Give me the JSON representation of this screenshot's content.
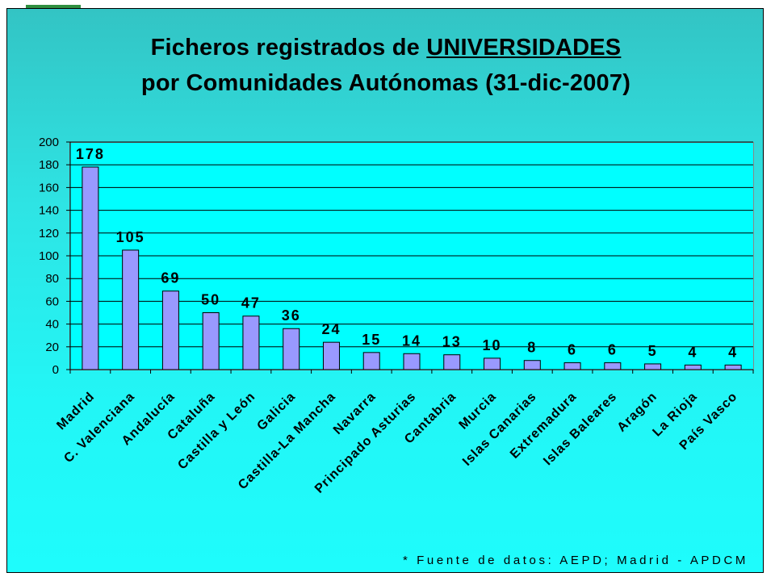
{
  "title": {
    "line1_prefix": "Ficheros registrados de ",
    "line1_emph": "UNIVERSIDADES",
    "line2": "por Comunidades Autónomas (31-dic-2007)"
  },
  "source_note": "* Fuente de datos: AEPD; Madrid - APDCM",
  "chart_data": {
    "type": "bar",
    "title": "Ficheros registrados de UNIVERSIDADES por Comunidades Autónomas (31-dic-2007)",
    "xlabel": "",
    "ylabel": "",
    "ylim": [
      0,
      200
    ],
    "yticks": [
      0,
      20,
      40,
      60,
      80,
      100,
      120,
      140,
      160,
      180,
      200
    ],
    "grid": true,
    "legend": "none",
    "categories": [
      "Madrid",
      "C. Valenciana",
      "Andalucía",
      "Cataluña",
      "Castilla y León",
      "Galicia",
      "Castilla-La Mancha",
      "Navarra",
      "Principado Asturias",
      "Cantabria",
      "Murcia",
      "Islas Canarias",
      "Extremadura",
      "Islas Baleares",
      "Aragón",
      "La Rioja",
      "País Vasco"
    ],
    "values": [
      178,
      105,
      69,
      50,
      47,
      36,
      24,
      15,
      14,
      13,
      10,
      8,
      6,
      6,
      5,
      4,
      4
    ],
    "colors": {
      "bar": "#9999ff",
      "bar_stroke": "#000000",
      "plot_bg": "#00ffff",
      "grid": "#000000"
    }
  }
}
